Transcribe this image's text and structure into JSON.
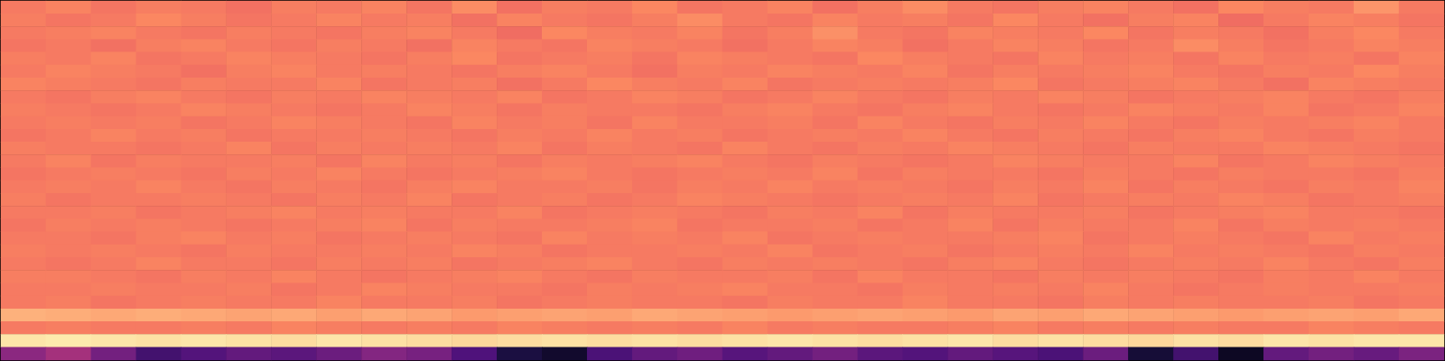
{
  "chart_data": {
    "type": "heatmap",
    "tick_labels": false,
    "grid": false,
    "value_range": [
      0,
      1
    ],
    "cells": [
      [
        0.72,
        0.74,
        0.71,
        0.73,
        0.72,
        0.7,
        0.73,
        0.72,
        0.74,
        0.71,
        0.76,
        0.7,
        0.73,
        0.72,
        0.75,
        0.71,
        0.72,
        0.74,
        0.7,
        0.73,
        0.76,
        0.72,
        0.71,
        0.73,
        0.74,
        0.72,
        0.7,
        0.75,
        0.73,
        0.72,
        0.78,
        0.72
      ],
      [
        0.73,
        0.71,
        0.72,
        0.75,
        0.73,
        0.71,
        0.72,
        0.74,
        0.72,
        0.73,
        0.7,
        0.74,
        0.72,
        0.71,
        0.73,
        0.76,
        0.72,
        0.71,
        0.74,
        0.72,
        0.73,
        0.71,
        0.75,
        0.72,
        0.7,
        0.73,
        0.74,
        0.69,
        0.72,
        0.74,
        0.73,
        0.71
      ],
      [
        0.72,
        0.73,
        0.74,
        0.72,
        0.71,
        0.73,
        0.72,
        0.71,
        0.73,
        0.74,
        0.72,
        0.69,
        0.75,
        0.73,
        0.72,
        0.74,
        0.71,
        0.73,
        0.77,
        0.72,
        0.71,
        0.74,
        0.73,
        0.72,
        0.75,
        0.71,
        0.73,
        0.72,
        0.7,
        0.73,
        0.75,
        0.72
      ],
      [
        0.71,
        0.72,
        0.7,
        0.73,
        0.74,
        0.72,
        0.71,
        0.73,
        0.72,
        0.7,
        0.74,
        0.72,
        0.71,
        0.74,
        0.73,
        0.72,
        0.7,
        0.72,
        0.74,
        0.73,
        0.7,
        0.72,
        0.74,
        0.73,
        0.71,
        0.72,
        0.76,
        0.73,
        0.71,
        0.72,
        0.74,
        0.73
      ],
      [
        0.73,
        0.72,
        0.74,
        0.71,
        0.72,
        0.74,
        0.73,
        0.72,
        0.71,
        0.73,
        0.75,
        0.71,
        0.72,
        0.73,
        0.71,
        0.74,
        0.73,
        0.72,
        0.71,
        0.75,
        0.73,
        0.72,
        0.71,
        0.74,
        0.72,
        0.73,
        0.71,
        0.74,
        0.72,
        0.73,
        0.71,
        0.74
      ],
      [
        0.72,
        0.74,
        0.73,
        0.72,
        0.7,
        0.73,
        0.74,
        0.72,
        0.73,
        0.72,
        0.71,
        0.73,
        0.74,
        0.72,
        0.7,
        0.73,
        0.72,
        0.74,
        0.73,
        0.72,
        0.74,
        0.71,
        0.73,
        0.72,
        0.73,
        0.74,
        0.72,
        0.71,
        0.73,
        0.72,
        0.75,
        0.73
      ],
      [
        0.74,
        0.73,
        0.72,
        0.71,
        0.73,
        0.72,
        0.72,
        0.74,
        0.71,
        0.72,
        0.73,
        0.7,
        0.72,
        0.75,
        0.73,
        0.72,
        0.74,
        0.71,
        0.72,
        0.73,
        0.72,
        0.73,
        0.75,
        0.71,
        0.72,
        0.73,
        0.74,
        0.72,
        0.7,
        0.74,
        0.73,
        0.72
      ],
      [
        0.72,
        0.71,
        0.73,
        0.74,
        0.72,
        0.71,
        0.73,
        0.72,
        0.74,
        0.73,
        0.72,
        0.74,
        0.71,
        0.72,
        0.74,
        0.73,
        0.71,
        0.72,
        0.74,
        0.72,
        0.71,
        0.73,
        0.72,
        0.74,
        0.73,
        0.71,
        0.72,
        0.73,
        0.74,
        0.72,
        0.71,
        0.73
      ],
      [
        0.73,
        0.72,
        0.71,
        0.72,
        0.74,
        0.73,
        0.72,
        0.71,
        0.72,
        0.74,
        0.73,
        0.71,
        0.73,
        0.72,
        0.72,
        0.71,
        0.73,
        0.74,
        0.72,
        0.71,
        0.73,
        0.74,
        0.72,
        0.71,
        0.72,
        0.74,
        0.73,
        0.72,
        0.74,
        0.71,
        0.72,
        0.74
      ],
      [
        0.72,
        0.73,
        0.72,
        0.73,
        0.71,
        0.72,
        0.74,
        0.73,
        0.72,
        0.71,
        0.74,
        0.72,
        0.73,
        0.71,
        0.74,
        0.72,
        0.72,
        0.73,
        0.71,
        0.74,
        0.72,
        0.71,
        0.73,
        0.72,
        0.74,
        0.72,
        0.71,
        0.73,
        0.72,
        0.73,
        0.74,
        0.72
      ],
      [
        0.71,
        0.72,
        0.74,
        0.72,
        0.73,
        0.71,
        0.72,
        0.72,
        0.73,
        0.72,
        0.71,
        0.73,
        0.72,
        0.74,
        0.72,
        0.73,
        0.71,
        0.72,
        0.73,
        0.72,
        0.74,
        0.72,
        0.71,
        0.73,
        0.72,
        0.71,
        0.73,
        0.74,
        0.72,
        0.71,
        0.73,
        0.72
      ],
      [
        0.73,
        0.72,
        0.72,
        0.71,
        0.72,
        0.74,
        0.71,
        0.73,
        0.72,
        0.73,
        0.72,
        0.74,
        0.71,
        0.73,
        0.72,
        0.71,
        0.74,
        0.72,
        0.71,
        0.73,
        0.72,
        0.74,
        0.73,
        0.72,
        0.71,
        0.73,
        0.72,
        0.72,
        0.74,
        0.73,
        0.72,
        0.71
      ],
      [
        0.72,
        0.74,
        0.71,
        0.73,
        0.72,
        0.72,
        0.73,
        0.71,
        0.74,
        0.72,
        0.73,
        0.71,
        0.73,
        0.72,
        0.73,
        0.74,
        0.72,
        0.71,
        0.73,
        0.72,
        0.71,
        0.72,
        0.74,
        0.73,
        0.72,
        0.72,
        0.74,
        0.71,
        0.72,
        0.74,
        0.73,
        0.72
      ],
      [
        0.71,
        0.72,
        0.73,
        0.72,
        0.71,
        0.73,
        0.72,
        0.74,
        0.72,
        0.71,
        0.72,
        0.73,
        0.74,
        0.72,
        0.71,
        0.72,
        0.73,
        0.72,
        0.74,
        0.71,
        0.73,
        0.72,
        0.72,
        0.71,
        0.73,
        0.72,
        0.71,
        0.73,
        0.72,
        0.72,
        0.71,
        0.73
      ],
      [
        0.72,
        0.73,
        0.72,
        0.74,
        0.72,
        0.71,
        0.73,
        0.72,
        0.71,
        0.73,
        0.74,
        0.72,
        0.72,
        0.73,
        0.71,
        0.73,
        0.72,
        0.74,
        0.72,
        0.73,
        0.72,
        0.71,
        0.73,
        0.72,
        0.74,
        0.71,
        0.73,
        0.72,
        0.71,
        0.73,
        0.72,
        0.74
      ],
      [
        0.73,
        0.71,
        0.72,
        0.72,
        0.73,
        0.72,
        0.71,
        0.73,
        0.72,
        0.74,
        0.71,
        0.72,
        0.73,
        0.71,
        0.72,
        0.74,
        0.73,
        0.72,
        0.71,
        0.72,
        0.73,
        0.72,
        0.74,
        0.71,
        0.72,
        0.73,
        0.72,
        0.74,
        0.73,
        0.71,
        0.72,
        0.73
      ],
      [
        0.72,
        0.72,
        0.73,
        0.71,
        0.72,
        0.73,
        0.74,
        0.72,
        0.73,
        0.72,
        0.72,
        0.74,
        0.71,
        0.72,
        0.73,
        0.72,
        0.71,
        0.73,
        0.72,
        0.74,
        0.71,
        0.73,
        0.72,
        0.72,
        0.73,
        0.71,
        0.72,
        0.73,
        0.74,
        0.72,
        0.72,
        0.71
      ],
      [
        0.71,
        0.73,
        0.72,
        0.73,
        0.72,
        0.71,
        0.72,
        0.73,
        0.74,
        0.71,
        0.73,
        0.72,
        0.72,
        0.73,
        0.74,
        0.71,
        0.72,
        0.72,
        0.73,
        0.71,
        0.72,
        0.74,
        0.71,
        0.73,
        0.72,
        0.72,
        0.74,
        0.71,
        0.73,
        0.72,
        0.73,
        0.72
      ],
      [
        0.72,
        0.72,
        0.71,
        0.73,
        0.74,
        0.72,
        0.73,
        0.71,
        0.72,
        0.73,
        0.72,
        0.71,
        0.74,
        0.72,
        0.73,
        0.72,
        0.74,
        0.71,
        0.72,
        0.73,
        0.72,
        0.72,
        0.73,
        0.74,
        0.71,
        0.72,
        0.73,
        0.72,
        0.71,
        0.74,
        0.72,
        0.73
      ],
      [
        0.73,
        0.72,
        0.73,
        0.72,
        0.71,
        0.73,
        0.72,
        0.72,
        0.73,
        0.72,
        0.74,
        0.73,
        0.71,
        0.72,
        0.72,
        0.73,
        0.72,
        0.74,
        0.71,
        0.72,
        0.73,
        0.71,
        0.72,
        0.73,
        0.72,
        0.74,
        0.72,
        0.73,
        0.72,
        0.71,
        0.73,
        0.72
      ],
      [
        0.72,
        0.71,
        0.72,
        0.74,
        0.72,
        0.72,
        0.71,
        0.73,
        0.72,
        0.73,
        0.71,
        0.72,
        0.73,
        0.74,
        0.72,
        0.71,
        0.73,
        0.72,
        0.73,
        0.72,
        0.71,
        0.73,
        0.74,
        0.72,
        0.71,
        0.72,
        0.73,
        0.72,
        0.74,
        0.72,
        0.71,
        0.73
      ],
      [
        0.73,
        0.73,
        0.72,
        0.71,
        0.73,
        0.72,
        0.74,
        0.72,
        0.71,
        0.72,
        0.73,
        0.74,
        0.72,
        0.71,
        0.73,
        0.72,
        0.72,
        0.73,
        0.71,
        0.74,
        0.72,
        0.72,
        0.71,
        0.73,
        0.72,
        0.73,
        0.72,
        0.71,
        0.73,
        0.72,
        0.74,
        0.72
      ],
      [
        0.72,
        0.72,
        0.73,
        0.72,
        0.72,
        0.73,
        0.71,
        0.72,
        0.74,
        0.73,
        0.72,
        0.72,
        0.71,
        0.73,
        0.72,
        0.73,
        0.74,
        0.72,
        0.72,
        0.71,
        0.73,
        0.72,
        0.73,
        0.72,
        0.74,
        0.72,
        0.71,
        0.72,
        0.73,
        0.72,
        0.72,
        0.73
      ],
      [
        0.72,
        0.73,
        0.71,
        0.72,
        0.73,
        0.72,
        0.72,
        0.74,
        0.72,
        0.72,
        0.73,
        0.71,
        0.72,
        0.73,
        0.72,
        0.72,
        0.71,
        0.73,
        0.72,
        0.72,
        0.74,
        0.72,
        0.72,
        0.71,
        0.73,
        0.72,
        0.73,
        0.72,
        0.72,
        0.73,
        0.71,
        0.72
      ],
      [
        0.84,
        0.83,
        0.82,
        0.83,
        0.82,
        0.81,
        0.82,
        0.8,
        0.82,
        0.81,
        0.79,
        0.8,
        0.81,
        0.8,
        0.82,
        0.81,
        0.8,
        0.79,
        0.8,
        0.81,
        0.8,
        0.79,
        0.81,
        0.8,
        0.82,
        0.81,
        0.8,
        0.79,
        0.8,
        0.81,
        0.8,
        0.82
      ],
      [
        0.72,
        0.73,
        0.72,
        0.72,
        0.73,
        0.72,
        0.74,
        0.73,
        0.72,
        0.73,
        0.72,
        0.74,
        0.73,
        0.72,
        0.73,
        0.72,
        0.74,
        0.72,
        0.73,
        0.72,
        0.72,
        0.73,
        0.74,
        0.72,
        0.73,
        0.72,
        0.73,
        0.72,
        0.72,
        0.74,
        0.73,
        0.72
      ],
      [
        0.95,
        0.96,
        0.95,
        0.94,
        0.95,
        0.94,
        0.93,
        0.95,
        0.94,
        0.93,
        0.92,
        0.93,
        0.94,
        0.93,
        0.94,
        0.93,
        0.94,
        0.95,
        0.94,
        0.93,
        0.94,
        0.95,
        0.93,
        0.94,
        0.93,
        0.92,
        0.94,
        0.93,
        0.95,
        0.94,
        0.95,
        0.95
      ],
      [
        0.4,
        0.46,
        0.34,
        0.22,
        0.26,
        0.3,
        0.28,
        0.32,
        0.38,
        0.35,
        0.25,
        0.12,
        0.08,
        0.24,
        0.3,
        0.33,
        0.27,
        0.3,
        0.34,
        0.28,
        0.26,
        0.3,
        0.27,
        0.24,
        0.32,
        0.1,
        0.22,
        0.06,
        0.3,
        0.34,
        0.31,
        0.36
      ]
    ]
  }
}
